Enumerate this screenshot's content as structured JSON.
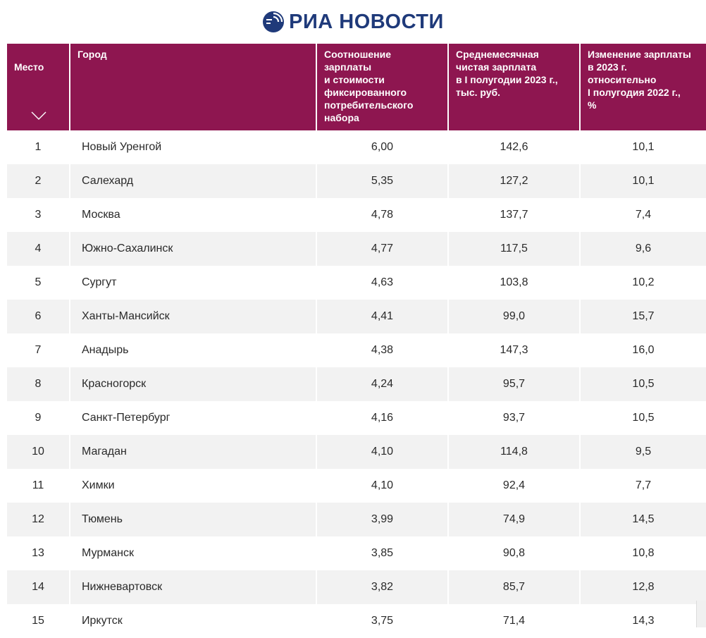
{
  "brand": {
    "name": "РИА НОВОСТИ",
    "logo_icon": "ria-globe-icon",
    "color": "#1f3a7a"
  },
  "table": {
    "header_color": "#8e1650",
    "columns": [
      "Место",
      "Город",
      "Соотношение\nзарплаты\nи стоимости\nфиксированного\nпотребительского\nнабора",
      "Среднемесячная\nчистая зарплата\nв I полугодии 2023 г.,\nтыс. руб.",
      "Изменение зарплаты\nв 2023 г.\nотносительно\nI полугодия 2022 г.,\n%"
    ],
    "rows": [
      [
        "1",
        "Новый Уренгой",
        "6,00",
        "142,6",
        "10,1"
      ],
      [
        "2",
        "Салехард",
        "5,35",
        "127,2",
        "10,1"
      ],
      [
        "3",
        "Москва",
        "4,78",
        "137,7",
        "7,4"
      ],
      [
        "4",
        "Южно-Сахалинск",
        "4,77",
        "117,5",
        "9,6"
      ],
      [
        "5",
        "Сургут",
        "4,63",
        "103,8",
        "10,2"
      ],
      [
        "6",
        "Ханты-Мансийск",
        "4,41",
        "99,0",
        "15,7"
      ],
      [
        "7",
        "Анадырь",
        "4,38",
        "147,3",
        "16,0"
      ],
      [
        "8",
        "Красногорск",
        "4,24",
        "95,7",
        "10,5"
      ],
      [
        "9",
        "Санкт-Петербург",
        "4,16",
        "93,7",
        "10,5"
      ],
      [
        "10",
        "Магадан",
        "4,10",
        "114,8",
        "9,5"
      ],
      [
        "11",
        "Химки",
        "4,10",
        "92,4",
        "7,7"
      ],
      [
        "12",
        "Тюмень",
        "3,99",
        "74,9",
        "14,5"
      ],
      [
        "13",
        "Мурманск",
        "3,85",
        "90,8",
        "10,8"
      ],
      [
        "14",
        "Нижневартовск",
        "3,82",
        "85,7",
        "12,8"
      ],
      [
        "15",
        "Иркутск",
        "3,75",
        "71,4",
        "14,3"
      ]
    ]
  }
}
